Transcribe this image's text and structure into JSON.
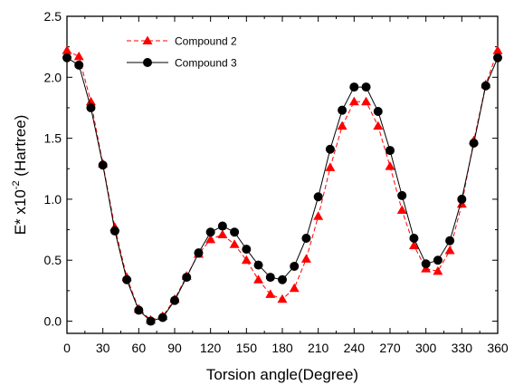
{
  "chart_data": {
    "type": "line",
    "xlabel": "Torsion angle(Degree)",
    "ylabel_main": "E* x10",
    "ylabel_exp": "-2",
    "ylabel_unit": " (Hartree)",
    "xlim": [
      0,
      360
    ],
    "ylim": [
      -0.1,
      2.5
    ],
    "x_ticks": [
      0,
      30,
      60,
      90,
      120,
      150,
      180,
      210,
      240,
      270,
      300,
      330,
      360
    ],
    "y_ticks": [
      0.0,
      0.5,
      1.0,
      1.5,
      2.0,
      2.5
    ],
    "x_tick_labels": [
      "0",
      "30",
      "60",
      "90",
      "120",
      "150",
      "180",
      "210",
      "240",
      "270",
      "300",
      "330",
      "360"
    ],
    "y_tick_labels": [
      "0.0",
      "0.5",
      "1.0",
      "1.5",
      "2.0",
      "2.5"
    ],
    "grid": false,
    "legend_position": "top-left",
    "x": [
      0,
      10,
      20,
      30,
      40,
      50,
      60,
      70,
      80,
      90,
      100,
      110,
      120,
      130,
      140,
      150,
      160,
      170,
      180,
      190,
      200,
      210,
      220,
      230,
      240,
      250,
      260,
      270,
      280,
      290,
      300,
      310,
      320,
      330,
      340,
      350,
      360
    ],
    "series": [
      {
        "name": "Compound 2",
        "color": "#ff0000",
        "marker": "triangle",
        "line_style": "dashed",
        "values": [
          2.22,
          2.17,
          1.8,
          1.29,
          0.77,
          0.36,
          0.1,
          0.01,
          0.04,
          0.18,
          0.37,
          0.55,
          0.67,
          0.71,
          0.63,
          0.5,
          0.34,
          0.22,
          0.18,
          0.27,
          0.51,
          0.86,
          1.26,
          1.6,
          1.8,
          1.8,
          1.6,
          1.27,
          0.91,
          0.62,
          0.43,
          0.41,
          0.58,
          0.96,
          1.48,
          1.94,
          2.22
        ]
      },
      {
        "name": "Compound 3",
        "color": "#000000",
        "marker": "circle",
        "line_style": "solid",
        "values": [
          2.16,
          2.1,
          1.75,
          1.28,
          0.74,
          0.34,
          0.09,
          0.0,
          0.03,
          0.17,
          0.36,
          0.56,
          0.73,
          0.78,
          0.73,
          0.59,
          0.46,
          0.36,
          0.34,
          0.45,
          0.68,
          1.02,
          1.41,
          1.73,
          1.92,
          1.92,
          1.72,
          1.4,
          1.03,
          0.68,
          0.47,
          0.5,
          0.66,
          1.0,
          1.46,
          1.93,
          2.16
        ]
      }
    ]
  }
}
